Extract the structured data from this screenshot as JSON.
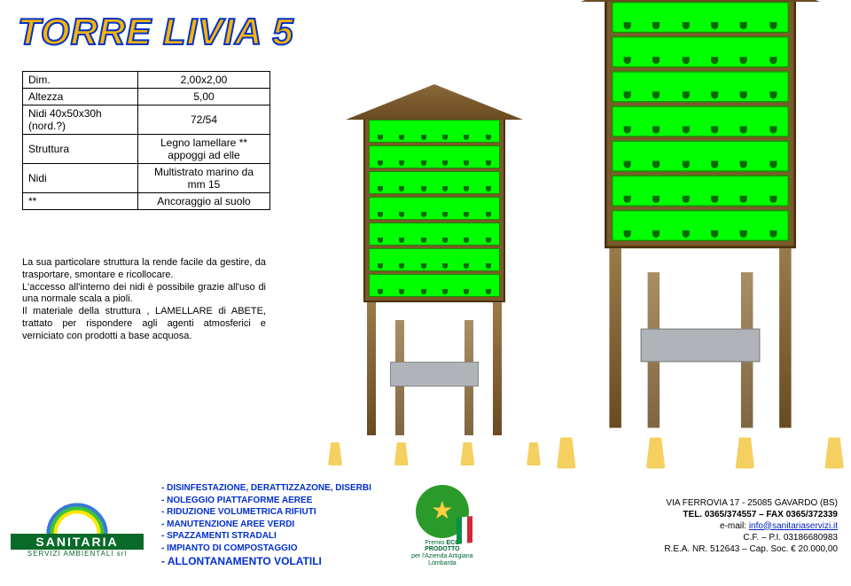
{
  "title": "TORRE LIVIA 5",
  "specs": {
    "rows": [
      {
        "label": "Dim.",
        "value": "2,00x2,00"
      },
      {
        "label": "Altezza",
        "value": "5,00"
      },
      {
        "label": "Nidi 40x50x30h (nord.?)",
        "value": "72/54"
      },
      {
        "label": "Struttura",
        "value": "Legno lamellare **\nappoggi ad elle"
      },
      {
        "label": "Nidi",
        "value": "Multistrato marino da\nmm 15"
      },
      {
        "label": "**",
        "value": "Ancoraggio al suolo"
      }
    ]
  },
  "description": "La sua particolare struttura la rende facile da gestire, da trasportare, smontare e ricollocare.\nL'accesso all'interno dei nidi è possibile grazie all'uso di una normale scala a pioli.\nIl materiale della struttura , LAMELLARE di ABETE, trattato per rispondere agli agenti atmosferici e verniciato con prodotti a base acquosa.",
  "logo": {
    "name": "SANITARIA",
    "sub": "SERVIZI AMBIENTALI srl"
  },
  "services": [
    "- DISINFESTAZIONE, DERATTIZZAZONE, DISERBI",
    "- NOLEGGIO PIATTAFORME AEREE",
    "- RIDUZIONE VOLUMETRICA RIFIUTI",
    "- MANUTENZIONE AREE VERDI",
    "- SPAZZAMENTI STRADALI",
    "- IMPIANTO DI COMPOSTAGGIO"
  ],
  "service_big": "- ALLONTANAMENTO VOLATILI",
  "premio": {
    "line1": "Premio",
    "line2": "ECO PRODOTTO",
    "line3": "per l'Azienda Artigiana Lombarda"
  },
  "contact": {
    "addr": "VIA FERROVIA 17 - 25085 GAVARDO (BS)",
    "tel": "TEL. 0365/374557 – FAX 0365/372339",
    "email_label": "e-mail: ",
    "email": "info@sanitariaservizi.it",
    "cf": "C.F. – P.I. 03186680983",
    "rea": "R.E.A. NR. 512643 – Cap. Soc. € 20.000,00"
  },
  "style": {
    "title_fill": "#ffb400",
    "title_stroke": "#0033cc",
    "tray_color": "#00ff00",
    "wood_color": "#7a5a2a",
    "service_color": "#002fd0"
  },
  "tower": {
    "tray_count": 7,
    "holes_per_tray": 6
  }
}
